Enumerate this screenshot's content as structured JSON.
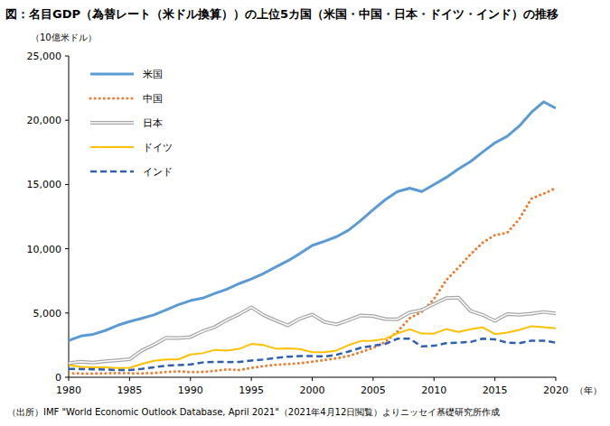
{
  "chart_data": {
    "type": "line",
    "title": "図：名目GDP（為替レート（米ドル換算））の上位5カ国（米国・中国・日本・ドイツ・インド）の推移",
    "y_label": "（10億米ドル）",
    "x_label": "（年）",
    "source": "（出所）IMF \"World Economic Outlook Database, April 2021\"（2021年4月12日閲覧）よりニッセイ基礎研究所作成",
    "x": [
      1980,
      1981,
      1982,
      1983,
      1984,
      1985,
      1986,
      1987,
      1988,
      1989,
      1990,
      1991,
      1992,
      1993,
      1994,
      1995,
      1996,
      1997,
      1998,
      1999,
      2000,
      2001,
      2002,
      2003,
      2004,
      2005,
      2006,
      2007,
      2008,
      2009,
      2010,
      2011,
      2012,
      2013,
      2014,
      2015,
      2016,
      2017,
      2018,
      2019,
      2020
    ],
    "series": [
      {
        "name": "米国",
        "color": "#5b9bd5",
        "line_style": "solid",
        "values": [
          2857,
          3207,
          3343,
          3634,
          4037,
          4339,
          4580,
          4855,
          5236,
          5642,
          5963,
          6158,
          6520,
          6859,
          7287,
          7640,
          8073,
          8578,
          9063,
          9631,
          10252,
          10582,
          10936,
          11458,
          12214,
          13037,
          13815,
          14452,
          14713,
          14449,
          14992,
          15543,
          16197,
          16785,
          17527,
          18238,
          18745,
          19543,
          20612,
          21433,
          20937
        ]
      },
      {
        "name": "中国",
        "color": "#ed7d31",
        "line_style": "dotted",
        "values": [
          303,
          290,
          285,
          305,
          314,
          310,
          301,
          327,
          411,
          461,
          397,
          415,
          494,
          617,
          564,
          734,
          864,
          962,
          1029,
          1094,
          1211,
          1339,
          1471,
          1660,
          1955,
          2286,
          2752,
          3550,
          4594,
          5102,
          6087,
          7552,
          8532,
          9570,
          10476,
          11062,
          11233,
          12310,
          13895,
          14280,
          14723
        ]
      },
      {
        "name": "日本",
        "color": "#a6a6a6",
        "line_style": "double",
        "values": [
          1105,
          1218,
          1134,
          1243,
          1318,
          1398,
          2078,
          2532,
          3072,
          3054,
          3133,
          3584,
          3909,
          4454,
          4907,
          5449,
          4834,
          4415,
          4033,
          4563,
          4888,
          4304,
          4115,
          4446,
          4815,
          4755,
          4530,
          4515,
          5038,
          5231,
          5700,
          6157,
          6203,
          5156,
          4850,
          4389,
          4923,
          4867,
          4955,
          5082,
          4975
        ]
      },
      {
        "name": "ドイツ",
        "color": "#ffc000",
        "line_style": "solid",
        "values": [
          950,
          801,
          779,
          771,
          721,
          742,
          1036,
          1281,
          1393,
          1386,
          1772,
          1870,
          2132,
          2073,
          2206,
          2594,
          2503,
          2219,
          2243,
          2198,
          1950,
          1951,
          2079,
          2506,
          2819,
          2846,
          2994,
          3421,
          3730,
          3398,
          3397,
          3745,
          3527,
          3732,
          3884,
          3357,
          3469,
          3681,
          3974,
          3889,
          3806
        ]
      },
      {
        "name": "インド",
        "color": "#2f5fb3",
        "line_style": "dashed",
        "values": [
          650,
          640,
          620,
          600,
          560,
          560,
          650,
          780,
          900,
          950,
          1000,
          1150,
          1200,
          1180,
          1200,
          1300,
          1380,
          1500,
          1600,
          1650,
          1650,
          1620,
          1750,
          2000,
          2300,
          2450,
          2600,
          3000,
          3000,
          2400,
          2450,
          2650,
          2700,
          2750,
          3000,
          2950,
          2700,
          2650,
          2850,
          2850,
          2700
        ]
      }
    ],
    "xlim": [
      1980,
      2020
    ],
    "xticks": [
      1980,
      1985,
      1990,
      1995,
      2000,
      2005,
      2010,
      2015,
      2020
    ],
    "ylim": [
      0,
      25000
    ],
    "yticks": [
      0,
      {
        "value": 5000,
        "label": "5,000"
      },
      {
        "value": 10000,
        "label": "10,000"
      },
      {
        "value": 15000,
        "label": "15,000"
      },
      {
        "value": 20000,
        "label": "20,000"
      },
      {
        "value": 25000,
        "label": "25,000"
      }
    ],
    "grid": false,
    "legend": "upper left"
  }
}
